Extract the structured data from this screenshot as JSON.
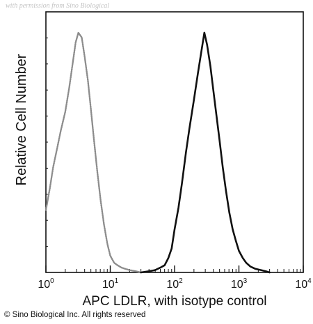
{
  "watermark": "with permission from Sino Biological",
  "copyright": "© Sino Biological Inc. All rights reserved",
  "chart_data": {
    "type": "area",
    "xscale": "log",
    "xlim": [
      1,
      10000
    ],
    "ylim": [
      0,
      100
    ],
    "xlabel": "APC LDLR, with isotype control",
    "ylabel": "Relative Cell Number",
    "x_ticks": [
      {
        "value": 1,
        "base": "10",
        "exp": "0"
      },
      {
        "value": 10,
        "base": "10",
        "exp": "1"
      },
      {
        "value": 100,
        "base": "10",
        "exp": "2"
      },
      {
        "value": 1000,
        "base": "10",
        "exp": "3"
      },
      {
        "value": 10000,
        "base": "10",
        "exp": "4"
      }
    ],
    "grid": false,
    "legend": "none",
    "series": [
      {
        "color": "#8c8c8c",
        "style": "dotted",
        "x": [
          1.0,
          1.15,
          1.3,
          1.5,
          1.7,
          2.0,
          2.3,
          2.6,
          2.9,
          3.2,
          3.6,
          4.0,
          4.5,
          5.0,
          5.6,
          6.3,
          7.1,
          8.0,
          9.0,
          10.0,
          11.5,
          13.0,
          15.0,
          17.0,
          20.0,
          25.0,
          30.0
        ],
        "values": [
          26,
          35,
          44,
          52,
          59,
          67,
          77,
          87,
          96,
          100,
          98,
          90,
          80,
          68,
          55,
          42,
          30,
          20,
          12,
          7,
          4,
          3,
          2,
          1.5,
          1,
          0.5,
          0
        ]
      },
      {
        "color": "#111111",
        "style": "solid",
        "x": [
          30,
          40,
          50,
          60,
          70,
          80,
          90,
          100,
          115,
          130,
          150,
          170,
          200,
          230,
          260,
          290,
          320,
          360,
          400,
          450,
          500,
          560,
          630,
          710,
          800,
          900,
          1000,
          1150,
          1300,
          1500,
          1800,
          2200,
          2600,
          3000
        ],
        "values": [
          0,
          0.5,
          1,
          2,
          3,
          6,
          10,
          18,
          27,
          37,
          50,
          60,
          72,
          83,
          92,
          100,
          95,
          86,
          76,
          65,
          55,
          44,
          34,
          25,
          18,
          13,
          9,
          6,
          4,
          2.5,
          1.5,
          1,
          0.5,
          0
        ]
      }
    ]
  }
}
